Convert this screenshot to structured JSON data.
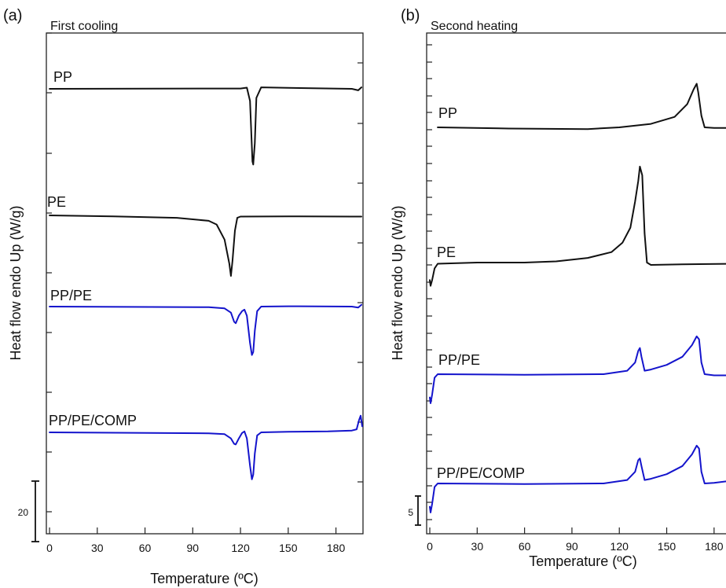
{
  "chart_data": [
    {
      "type": "line",
      "panel_label": "(a)",
      "title": "First cooling",
      "xlabel": "Temperature (ºC)",
      "ylabel": "Heat flow endo Up (W/g)",
      "xlim": [
        -2,
        197
      ],
      "xticks": [
        0,
        30,
        60,
        90,
        120,
        150,
        180
      ],
      "x_ticklabels": [
        "0",
        "30",
        "60",
        "90",
        "120",
        "150",
        "180"
      ],
      "scale_bar": {
        "label": "20",
        "value": 20
      },
      "grid": false,
      "series": [
        {
          "name": "PP",
          "color": "#111111",
          "baseline": 0,
          "points": [
            [
              0,
              0
            ],
            [
              120,
              0.1
            ],
            [
              124,
              0.4
            ],
            [
              126,
              -4
            ],
            [
              127.5,
              -24
            ],
            [
              128,
              -25
            ],
            [
              129,
              -18
            ],
            [
              130,
              -3
            ],
            [
              133,
              0.5
            ],
            [
              150,
              0.3
            ],
            [
              190,
              0
            ],
            [
              194,
              -0.5
            ],
            [
              196,
              0.5
            ]
          ]
        },
        {
          "name": "PE",
          "color": "#111111",
          "baseline": 0,
          "points": [
            [
              0,
              0
            ],
            [
              40,
              -0.3
            ],
            [
              80,
              -0.8
            ],
            [
              100,
              -1.8
            ],
            [
              105,
              -3
            ],
            [
              110,
              -8
            ],
            [
              113,
              -16
            ],
            [
              114,
              -20
            ],
            [
              115,
              -15
            ],
            [
              116.5,
              -5
            ],
            [
              118,
              -0.8
            ],
            [
              120,
              -0.4
            ],
            [
              150,
              -0.3
            ],
            [
              190,
              -0.4
            ],
            [
              196,
              -0.4
            ]
          ]
        },
        {
          "name": "PP/PE",
          "color": "#1414cc",
          "baseline": 0,
          "points": [
            [
              0,
              0
            ],
            [
              100,
              -0.2
            ],
            [
              110,
              -0.6
            ],
            [
              114,
              -2
            ],
            [
              116,
              -5
            ],
            [
              117,
              -5.5
            ],
            [
              119,
              -3
            ],
            [
              121,
              -1.5
            ],
            [
              122.5,
              -1
            ],
            [
              124,
              -3
            ],
            [
              126,
              -12
            ],
            [
              127.2,
              -16
            ],
            [
              128,
              -15
            ],
            [
              129,
              -8
            ],
            [
              130.5,
              -1.5
            ],
            [
              133,
              0
            ],
            [
              150,
              0.1
            ],
            [
              190,
              0
            ],
            [
              194,
              -0.3
            ],
            [
              196,
              0.6
            ]
          ]
        },
        {
          "name": "PP/PE/COMP",
          "color": "#1414cc",
          "baseline": 0,
          "points": [
            [
              0,
              0
            ],
            [
              100,
              -0.3
            ],
            [
              110,
              -0.6
            ],
            [
              114,
              -2
            ],
            [
              116,
              -3.8
            ],
            [
              117,
              -4
            ],
            [
              119,
              -2
            ],
            [
              121,
              -0.2
            ],
            [
              122.5,
              0.3
            ],
            [
              124,
              -2
            ],
            [
              126,
              -11
            ],
            [
              127.2,
              -15.5
            ],
            [
              128,
              -14
            ],
            [
              129,
              -7
            ],
            [
              130.5,
              -1
            ],
            [
              133,
              0
            ],
            [
              150,
              0.2
            ],
            [
              175,
              0.3
            ],
            [
              190,
              0.6
            ],
            [
              193,
              1
            ],
            [
              194.5,
              4
            ],
            [
              195.5,
              5.5
            ],
            [
              196.5,
              2
            ]
          ]
        }
      ]
    },
    {
      "type": "line",
      "panel_label": "(b)",
      "title": "Second heating",
      "xlabel": "Temperature (ºC)",
      "ylabel": "Heat flow endo Up (W/g)",
      "xlim": [
        -2,
        197
      ],
      "xticks": [
        0,
        30,
        60,
        90,
        120,
        150,
        180
      ],
      "x_ticklabels": [
        "0",
        "30",
        "60",
        "90",
        "120",
        "150",
        "180"
      ],
      "scale_bar": {
        "label": "5",
        "value": 5
      },
      "grid": false,
      "series": [
        {
          "name": "PP",
          "color": "#111111",
          "baseline": 0,
          "points": [
            [
              5,
              0
            ],
            [
              50,
              -0.2
            ],
            [
              100,
              -0.3
            ],
            [
              120,
              0
            ],
            [
              140,
              0.6
            ],
            [
              155,
              1.8
            ],
            [
              163,
              4
            ],
            [
              167,
              6.5
            ],
            [
              169,
              7.5
            ],
            [
              170,
              6
            ],
            [
              172,
              2
            ],
            [
              174,
              0
            ],
            [
              180,
              -0.1
            ],
            [
              197,
              -0.1
            ]
          ]
        },
        {
          "name": "PE",
          "color": "#111111",
          "baseline": 0,
          "points": [
            [
              0,
              -3
            ],
            [
              0.5,
              -4
            ],
            [
              1.5,
              -3
            ],
            [
              3,
              -1
            ],
            [
              5,
              -0.2
            ],
            [
              30,
              0
            ],
            [
              60,
              0
            ],
            [
              80,
              0.2
            ],
            [
              100,
              0.8
            ],
            [
              115,
              1.8
            ],
            [
              122,
              3.4
            ],
            [
              127,
              6
            ],
            [
              130,
              10.5
            ],
            [
              132,
              14
            ],
            [
              133,
              16.5
            ],
            [
              134.5,
              15
            ],
            [
              136,
              5
            ],
            [
              137.5,
              0
            ],
            [
              140,
              -0.4
            ],
            [
              160,
              -0.3
            ],
            [
              197,
              -0.2
            ]
          ]
        },
        {
          "name": "PP/PE",
          "color": "#1414cc",
          "baseline": 0,
          "points": [
            [
              0,
              -4
            ],
            [
              0.5,
              -5
            ],
            [
              1.5,
              -3.5
            ],
            [
              3,
              -0.6
            ],
            [
              5,
              0
            ],
            [
              60,
              -0.1
            ],
            [
              110,
              0
            ],
            [
              125,
              0.6
            ],
            [
              130,
              2
            ],
            [
              132,
              4
            ],
            [
              133,
              4.5
            ],
            [
              134,
              3
            ],
            [
              136,
              0.6
            ],
            [
              140,
              0.8
            ],
            [
              150,
              1.6
            ],
            [
              160,
              3
            ],
            [
              166,
              5
            ],
            [
              169,
              6.5
            ],
            [
              170.5,
              6
            ],
            [
              172,
              2
            ],
            [
              174,
              0
            ],
            [
              180,
              -0.2
            ],
            [
              197,
              -0.2
            ]
          ]
        },
        {
          "name": "PP/PE/COMP",
          "color": "#1414cc",
          "baseline": 0,
          "points": [
            [
              0,
              -4
            ],
            [
              0.5,
              -5
            ],
            [
              1.5,
              -3.5
            ],
            [
              3,
              -0.6
            ],
            [
              5,
              0
            ],
            [
              60,
              -0.1
            ],
            [
              110,
              0
            ],
            [
              125,
              0.6
            ],
            [
              130,
              2
            ],
            [
              132,
              4
            ],
            [
              133,
              4.3
            ],
            [
              134,
              3
            ],
            [
              136,
              0.6
            ],
            [
              140,
              0.8
            ],
            [
              150,
              1.6
            ],
            [
              160,
              3
            ],
            [
              166,
              5
            ],
            [
              169,
              6.5
            ],
            [
              170.5,
              6
            ],
            [
              172,
              2
            ],
            [
              174,
              0
            ],
            [
              180,
              0.1
            ],
            [
              192,
              0.5
            ],
            [
              197,
              0.5
            ]
          ]
        }
      ]
    }
  ]
}
